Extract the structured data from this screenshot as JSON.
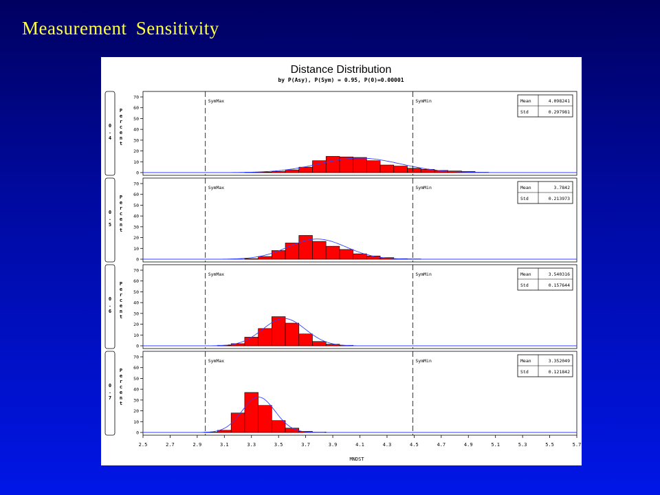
{
  "slide": {
    "title": "Measurement Sensitivity"
  },
  "chart_data": {
    "type": "bar",
    "title": "Distance Distribution",
    "subtitle": "by P(Asy), P(Sym) = 0.95, P(0)=0.00001",
    "xlabel": "MNDST",
    "ylabel": "Percent",
    "xlim": [
      2.5,
      5.7
    ],
    "ylim": [
      0,
      70
    ],
    "x_ticks": [
      "2.5",
      "2.7",
      "2.9",
      "3.1",
      "3.3",
      "3.5",
      "3.7",
      "3.9",
      "4.1",
      "4.3",
      "4.5",
      "4.7",
      "4.9",
      "5.1",
      "5.3",
      "5.5",
      "5.7"
    ],
    "y_ticks": [
      "0",
      "10",
      "20",
      "30",
      "40",
      "50",
      "60",
      "70"
    ],
    "bin_width": 0.1,
    "reference_lines": [
      {
        "label": "SymMax",
        "x": 2.96
      },
      {
        "label": "SymMin",
        "x": 4.49
      }
    ],
    "panels": [
      {
        "label": "0.4",
        "mean_label": "Mean",
        "mean": "4.098241",
        "std_label": "Std",
        "std": "0.297981",
        "bin_centers": [
          3.3,
          3.4,
          3.5,
          3.6,
          3.7,
          3.8,
          3.9,
          4.0,
          4.1,
          4.2,
          4.3,
          4.4,
          4.5,
          4.6,
          4.7,
          4.8,
          4.9,
          5.0
        ],
        "values": [
          0.3,
          0.5,
          1,
          2.5,
          5,
          11,
          15,
          14.5,
          14,
          11,
          7,
          6,
          4,
          3,
          2,
          1.5,
          1,
          0.3
        ]
      },
      {
        "label": "0.5",
        "mean_label": "Mean",
        "mean": "3.7842",
        "std_label": "Std",
        "std": "0.213973",
        "bin_centers": [
          3.3,
          3.4,
          3.5,
          3.6,
          3.7,
          3.8,
          3.9,
          4.0,
          4.1,
          4.2,
          4.3,
          4.4,
          4.5
        ],
        "values": [
          0.5,
          2.5,
          8,
          15,
          22,
          16.5,
          12,
          9,
          5,
          3,
          1.5,
          0.5,
          0.3
        ]
      },
      {
        "label": "0.6",
        "mean_label": "Mean",
        "mean": "3.540316",
        "std_label": "Std",
        "std": "0.157644",
        "bin_centers": [
          3.1,
          3.2,
          3.3,
          3.4,
          3.5,
          3.6,
          3.7,
          3.8,
          3.9,
          4.0
        ],
        "values": [
          0.5,
          2,
          8,
          16,
          27,
          21,
          11,
          4,
          1.5,
          0.5
        ]
      },
      {
        "label": "0.7",
        "mean_label": "Mean",
        "mean": "3.352049",
        "std_label": "Std",
        "std": "0.121842",
        "bin_centers": [
          3.0,
          3.1,
          3.2,
          3.3,
          3.4,
          3.5,
          3.6,
          3.7,
          3.8
        ],
        "values": [
          0.3,
          2,
          18,
          37,
          25,
          11,
          4,
          1,
          0.3
        ]
      }
    ],
    "colors": {
      "bar": "#ff0000",
      "bar_edge": "#000000",
      "curve": "#3040ff"
    }
  }
}
